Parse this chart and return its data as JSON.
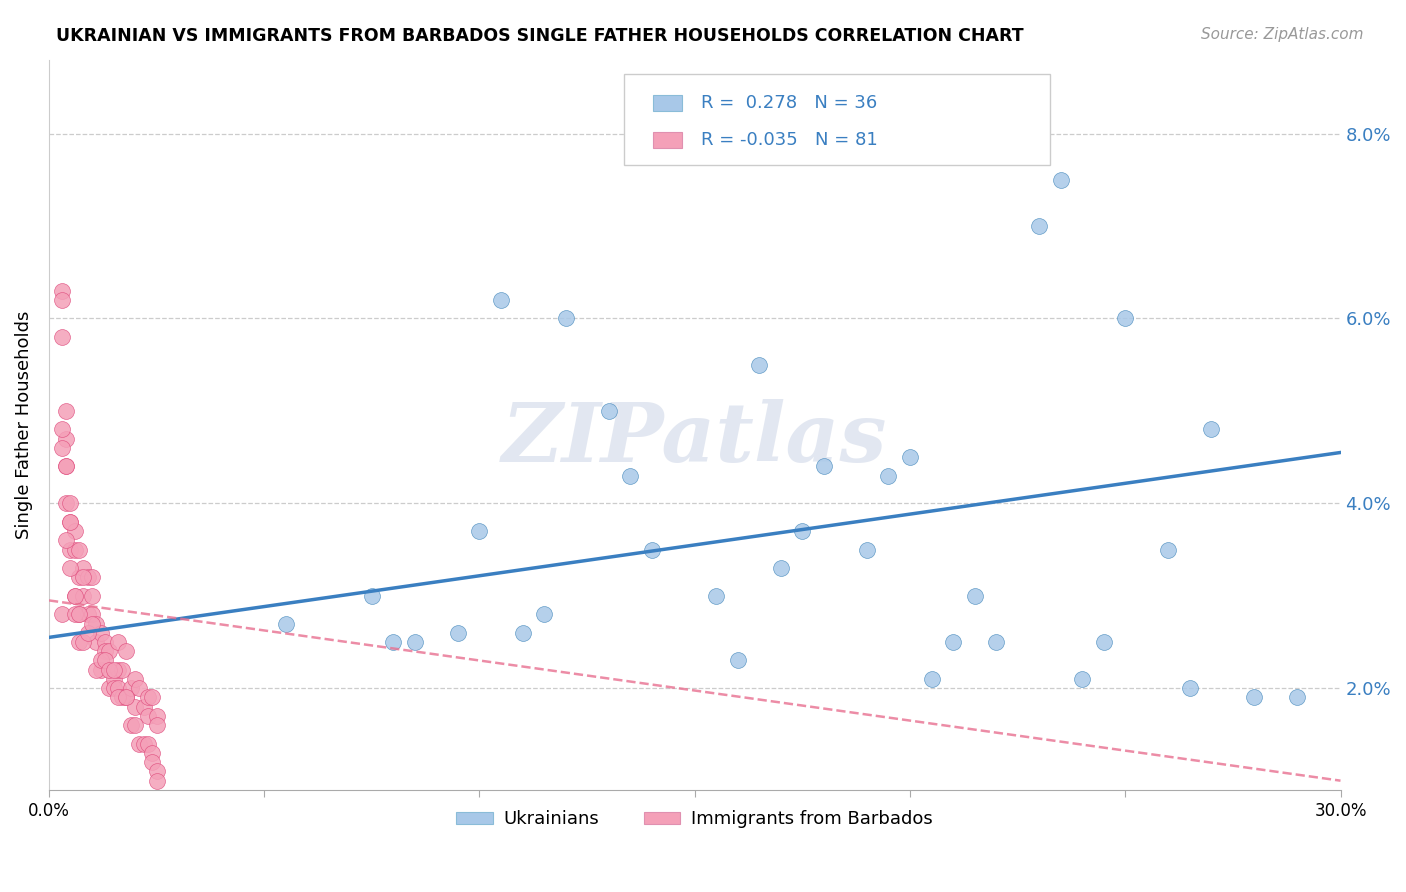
{
  "title": "UKRAINIAN VS IMMIGRANTS FROM BARBADOS SINGLE FATHER HOUSEHOLDS CORRELATION CHART",
  "source": "Source: ZipAtlas.com",
  "ylabel": "Single Father Households",
  "xmin": 0.0,
  "xmax": 0.3,
  "ymin": 0.009,
  "ymax": 0.088,
  "yticks": [
    0.02,
    0.04,
    0.06,
    0.08
  ],
  "ytick_labels": [
    "2.0%",
    "4.0%",
    "6.0%",
    "8.0%"
  ],
  "xticks": [
    0.0,
    0.05,
    0.1,
    0.15,
    0.2,
    0.25,
    0.3
  ],
  "xtick_labels": [
    "0.0%",
    "",
    "",
    "",
    "",
    "",
    "30.0%"
  ],
  "blue_color": "#a8c8e8",
  "pink_color": "#f4a0b8",
  "blue_line_color": "#3a7fc1",
  "pink_line_color": "#e87090",
  "text_blue": "#3a7fc1",
  "watermark": "ZIPatlas",
  "blue_scatter_x": [
    0.055,
    0.075,
    0.08,
    0.085,
    0.095,
    0.1,
    0.105,
    0.11,
    0.115,
    0.12,
    0.13,
    0.135,
    0.14,
    0.155,
    0.16,
    0.165,
    0.17,
    0.175,
    0.18,
    0.19,
    0.195,
    0.2,
    0.205,
    0.21,
    0.215,
    0.22,
    0.23,
    0.235,
    0.24,
    0.245,
    0.25,
    0.26,
    0.265,
    0.27,
    0.28,
    0.29
  ],
  "blue_scatter_y": [
    0.027,
    0.03,
    0.025,
    0.025,
    0.026,
    0.037,
    0.062,
    0.026,
    0.028,
    0.06,
    0.05,
    0.043,
    0.035,
    0.03,
    0.023,
    0.055,
    0.033,
    0.037,
    0.044,
    0.035,
    0.043,
    0.045,
    0.021,
    0.025,
    0.03,
    0.025,
    0.07,
    0.075,
    0.021,
    0.025,
    0.06,
    0.035,
    0.02,
    0.048,
    0.019,
    0.019
  ],
  "pink_scatter_x": [
    0.003,
    0.003,
    0.003,
    0.004,
    0.004,
    0.004,
    0.004,
    0.005,
    0.005,
    0.005,
    0.006,
    0.006,
    0.006,
    0.007,
    0.007,
    0.007,
    0.008,
    0.008,
    0.009,
    0.009,
    0.01,
    0.01,
    0.01,
    0.011,
    0.011,
    0.012,
    0.012,
    0.013,
    0.013,
    0.014,
    0.014,
    0.015,
    0.015,
    0.016,
    0.016,
    0.016,
    0.017,
    0.017,
    0.018,
    0.018,
    0.019,
    0.02,
    0.02,
    0.021,
    0.022,
    0.023,
    0.023,
    0.024,
    0.025,
    0.025,
    0.003,
    0.003,
    0.003,
    0.004,
    0.004,
    0.005,
    0.005,
    0.006,
    0.006,
    0.007,
    0.007,
    0.008,
    0.008,
    0.009,
    0.01,
    0.011,
    0.012,
    0.013,
    0.014,
    0.015,
    0.016,
    0.018,
    0.019,
    0.02,
    0.021,
    0.022,
    0.023,
    0.024,
    0.024,
    0.025,
    0.025
  ],
  "pink_scatter_y": [
    0.063,
    0.058,
    0.062,
    0.05,
    0.047,
    0.044,
    0.04,
    0.04,
    0.038,
    0.035,
    0.037,
    0.035,
    0.03,
    0.035,
    0.032,
    0.028,
    0.033,
    0.03,
    0.032,
    0.028,
    0.032,
    0.03,
    0.028,
    0.027,
    0.025,
    0.026,
    0.022,
    0.025,
    0.024,
    0.024,
    0.02,
    0.021,
    0.02,
    0.025,
    0.022,
    0.02,
    0.022,
    0.019,
    0.024,
    0.019,
    0.02,
    0.021,
    0.018,
    0.02,
    0.018,
    0.019,
    0.017,
    0.019,
    0.017,
    0.016,
    0.048,
    0.046,
    0.028,
    0.036,
    0.044,
    0.038,
    0.033,
    0.03,
    0.028,
    0.028,
    0.025,
    0.025,
    0.032,
    0.026,
    0.027,
    0.022,
    0.023,
    0.023,
    0.022,
    0.022,
    0.019,
    0.019,
    0.016,
    0.016,
    0.014,
    0.014,
    0.014,
    0.013,
    0.012,
    0.011,
    0.01
  ]
}
